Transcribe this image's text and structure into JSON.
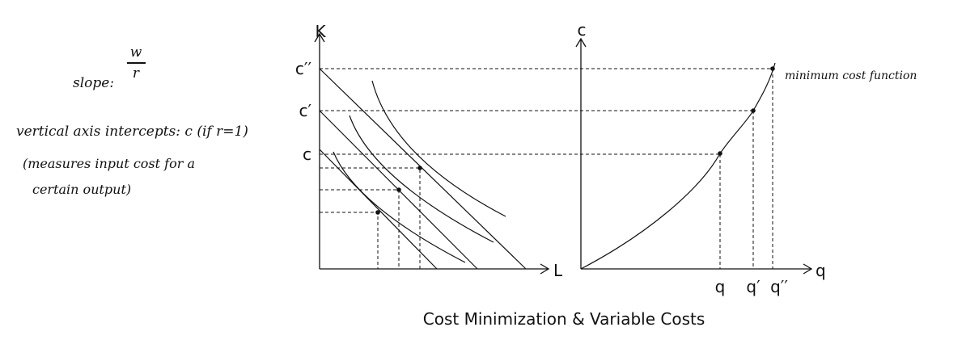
{
  "notes": {
    "slope_label": "slope:",
    "slope_numerator": "w",
    "slope_denominator": "r",
    "intercept_note": "vertical axis intercepts: c (if r=1)",
    "measure_note_line1": "(measures input cost for a",
    "measure_note_line2": "certain output)"
  },
  "left_panel": {
    "y_axis_label": "K",
    "x_axis_label": "L",
    "y_labels": [
      "c′′",
      "c′",
      "c"
    ]
  },
  "right_panel": {
    "y_axis_label": "c",
    "x_axis_label": "q",
    "x_labels": [
      "q",
      "q′",
      "q′′"
    ],
    "curve_label": "minimum cost function"
  },
  "caption": "Cost Minimization & Variable Costs"
}
